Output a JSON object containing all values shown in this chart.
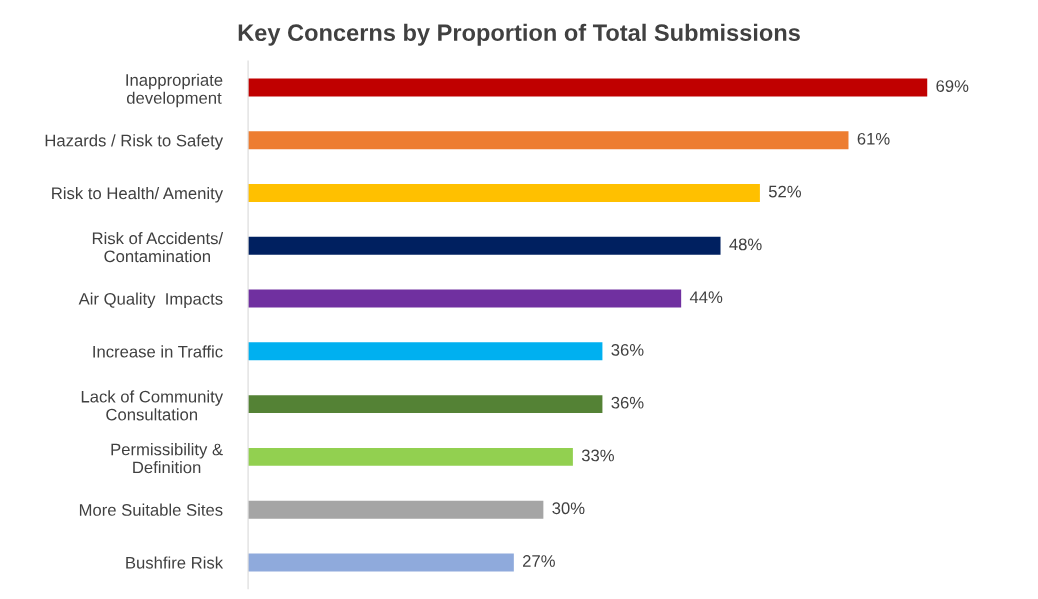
{
  "chart_data": {
    "type": "bar",
    "orientation": "horizontal",
    "title": "Key Concerns by Proportion of Total Submissions",
    "categories": [
      "Inappropriate\ndevelopment",
      "Hazards / Risk to Safety",
      "Risk to Health/ Amenity",
      "Risk of Accidents/\nContamination",
      "Air Quality  Impacts",
      "Increase in Traffic",
      "Lack of Community\nConsultation",
      "Permissibility &\nDefinition",
      "More Suitable Sites",
      "Bushfire Risk"
    ],
    "values": [
      69,
      61,
      52,
      48,
      44,
      36,
      36,
      33,
      30,
      27
    ],
    "colors": [
      "#c00000",
      "#ed7d31",
      "#ffc000",
      "#002060",
      "#7030a0",
      "#00b0f0",
      "#548235",
      "#92d050",
      "#a5a5a5",
      "#8faadc"
    ],
    "value_labels": [
      "69%",
      "61%",
      "52%",
      "48%",
      "44%",
      "36%",
      "36%",
      "33%",
      "30%",
      "27%"
    ],
    "grid": false,
    "legend": false
  }
}
